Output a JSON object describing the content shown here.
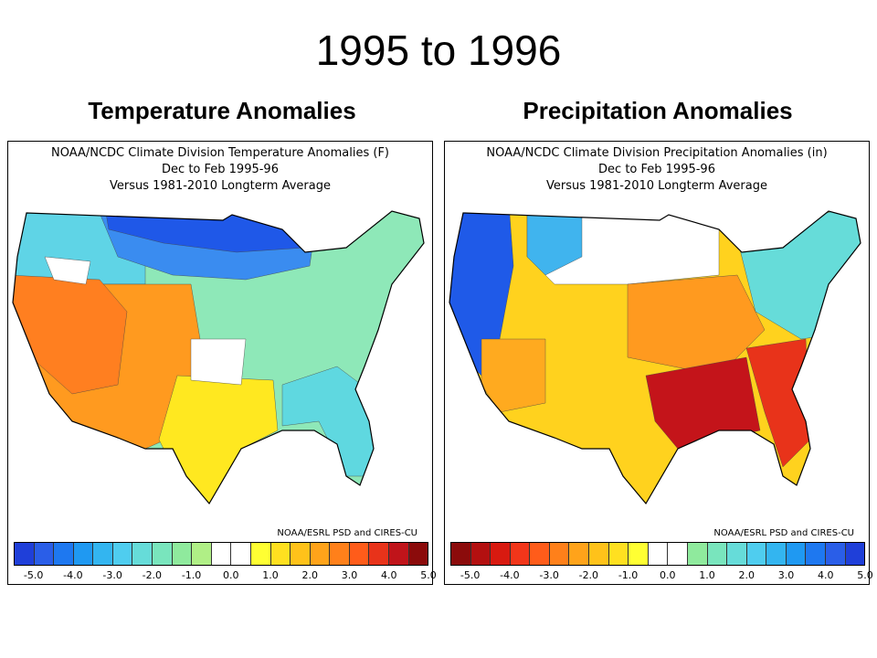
{
  "slide": {
    "title": "1995 to 1996"
  },
  "panels": [
    {
      "heading": "Temperature Anomalies",
      "map_title_lines": [
        "NOAA/NCDC Climate Division Temperature Anomalies (F)",
        "Dec to Feb 1995-96",
        "Versus 1981-2010 Longterm Average"
      ],
      "credit": "NOAA/ESRL PSD and CIRES-CU",
      "colorbar": {
        "colors": [
          "#1f3fd9",
          "#2a5ee8",
          "#1e78f0",
          "#1f99f2",
          "#33b5f0",
          "#4fcdef",
          "#66dcd9",
          "#79e5bd",
          "#8fea9d",
          "#b0ef86",
          "#ffffff",
          "#ffffff",
          "#ffff33",
          "#ffe020",
          "#ffc21a",
          "#ffa31a",
          "#ff801a",
          "#ff5c1a",
          "#e8331a",
          "#c0141a",
          "#8b0b0b"
        ],
        "tick_labels": [
          "-5.0",
          "-4.0",
          "-3.0",
          "-2.0",
          "-1.0",
          "0.0",
          "1.0",
          "2.0",
          "3.0",
          "4.0",
          "5.0"
        ]
      },
      "region_colors": {
        "north_central": "#1f58e8",
        "upper_midwest": "#3a8cf0",
        "plains": "#5fd4e6",
        "east": "#8ee8b8",
        "southeast": "#5fd8e0",
        "west": "#ff7f20",
        "southwest": "#ff9a1f",
        "texas": "#ffe820",
        "white_area": "#ffffff"
      }
    },
    {
      "heading": "Precipitation Anomalies",
      "map_title_lines": [
        "NOAA/NCDC Climate Division Precipitation Anomalies (in)",
        "Dec to Feb 1995-96",
        "Versus 1981-2010 Longterm Average"
      ],
      "credit": "NOAA/ESRL PSD and CIRES-CU",
      "colorbar": {
        "colors": [
          "#8b0b0b",
          "#b31010",
          "#d81a10",
          "#f2361a",
          "#ff5c1a",
          "#ff801a",
          "#ffa31a",
          "#ffc21a",
          "#ffe020",
          "#ffff33",
          "#ffffff",
          "#ffffff",
          "#8fea9d",
          "#79e5bd",
          "#66dcd9",
          "#4fcdef",
          "#33b5f0",
          "#1f99f2",
          "#1e78f0",
          "#2a5ee8",
          "#1f3fd9"
        ],
        "tick_labels": [
          "-5.0",
          "-4.0",
          "-3.0",
          "-2.0",
          "-1.0",
          "0.0",
          "1.0",
          "2.0",
          "3.0",
          "4.0",
          "5.0"
        ]
      },
      "region_colors": {
        "pacific_nw": "#1f5ae8",
        "northern_rockies": "#40b4ee",
        "plains": "#ffd21e",
        "midwest": "#ff9a1f",
        "gulf": "#c4141a",
        "southeast": "#e8331a",
        "northeast": "#66dcd9",
        "southwest": "#ffaa1f",
        "white_area": "#ffffff"
      }
    }
  ]
}
